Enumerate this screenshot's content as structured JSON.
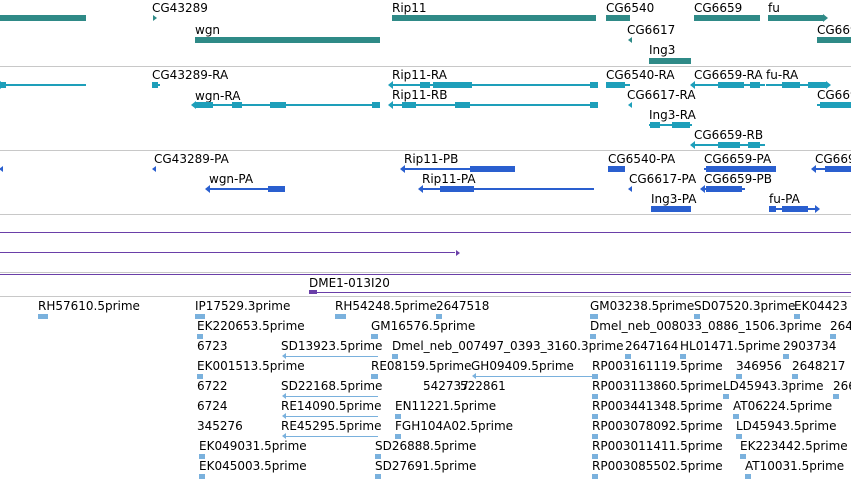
{
  "colors": {
    "gene": "#2f8a87",
    "rna": "#1e9fba",
    "protein": "#2a5fcf",
    "line": "#6a3fa8",
    "est": "#7ab1dd",
    "separator": "#c8c8c8"
  },
  "tracks": {
    "genes": {
      "labels": [
        "CG43289",
        "wgn",
        "Rip11",
        "CG6540",
        "CG6617",
        "Ing3",
        "CG6659",
        "fu",
        "CG669"
      ]
    },
    "transcripts": {
      "labels": [
        "CG43289-RA",
        "wgn-RA",
        "Rip11-RA",
        "Rip11-RB",
        "CG6540-RA",
        "CG6617-RA",
        "Ing3-RA",
        "CG6659-RA",
        "fu-RA",
        "CG6659-RB",
        "CG669"
      ]
    },
    "proteins": {
      "labels": [
        "CG43289-PA",
        "wgn-PA",
        "Rip11-PB",
        "Rip11-PA",
        "CG6540-PA",
        "CG6617-PA",
        "Ing3-PA",
        "CG6659-PA",
        "CG6659-PB",
        "fu-PA",
        "CG669"
      ]
    },
    "clones": {
      "labels": [
        "DME1-013I20"
      ]
    },
    "ests": {
      "labels": [
        "RH57610.5prime",
        "IP17529.3prime",
        "RH54248.5prime",
        "2647518",
        "GM03238.5prime",
        "SD07520.3prime",
        "EK04423",
        "EK220653.5prime",
        "GM16576.5prime",
        "Dmel_neb_008033_0886_1506.3prime",
        "264",
        "6723",
        "SD13923.5prime",
        "Dmel_neb_007497_0393_3160.3prime",
        "2647164",
        "HL01471.5prime",
        "2903734",
        "EK001513.5prime",
        "RE08159.5prime",
        "GH09409.5prime",
        "RP003161119.5prime",
        "346956",
        "2648217",
        "6722",
        "SD22168.5prime",
        "542737",
        "522861",
        "RP003113860.5prime",
        "LD45943.3prime",
        "266",
        "6724",
        "RE14090.5prime",
        "EN11221.5prime",
        "RP003441348.5prime",
        "AT06224.5prime",
        "345276",
        "RE45295.5prime",
        "FGH104A02.5prime",
        "RP003078092.5prime",
        "LD45943.5prime",
        "EK049031.5prime",
        "SD26888.5prime",
        "RP003011411.5prime",
        "EK223442.5prime",
        "EK045003.5prime",
        "SD27691.5prime",
        "RP003085502.5prime",
        "AT10031.5prime"
      ]
    }
  }
}
